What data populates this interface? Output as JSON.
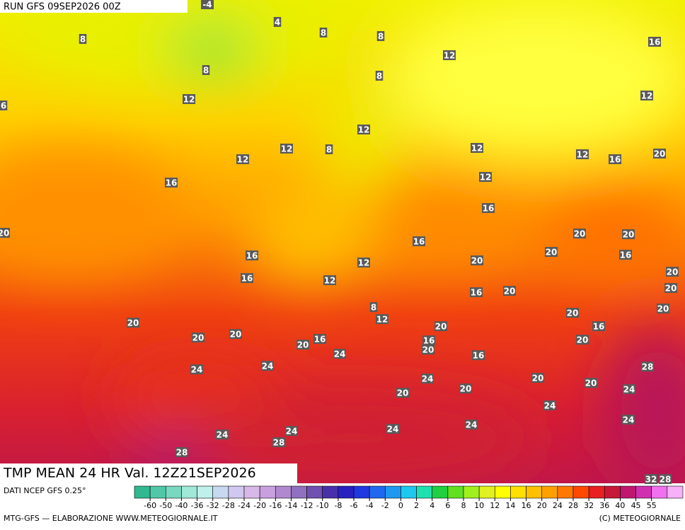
{
  "header": {
    "run": "RUN GFS 09SEP2026 00Z"
  },
  "map": {
    "title": "TMP MEAN 24 HR Val. 12Z21SEP2026",
    "contour_labels": [
      -4,
      8,
      4,
      8,
      8,
      8,
      12,
      16,
      8,
      12,
      12,
      6,
      12,
      12,
      8,
      12,
      12,
      16,
      20,
      12,
      12,
      16,
      16,
      20,
      20,
      20,
      16,
      20,
      20,
      16,
      16,
      12,
      20,
      16,
      12,
      16,
      20,
      20,
      8,
      12,
      20,
      20,
      20,
      20,
      16,
      20,
      20,
      16,
      20,
      16,
      20,
      20,
      24,
      16,
      24,
      24,
      28,
      24,
      20,
      20,
      20,
      24,
      20,
      24,
      24,
      24,
      24,
      24,
      24,
      28,
      28,
      32,
      28
    ]
  },
  "legend": {
    "source": "DATI NCEP GFS 0.25°",
    "ticks": [
      -60,
      -50,
      -40,
      -36,
      -32,
      -28,
      -24,
      -20,
      -16,
      -14,
      -12,
      -10,
      -8,
      -6,
      -4,
      -2,
      0,
      2,
      4,
      6,
      8,
      10,
      12,
      14,
      16,
      20,
      24,
      28,
      32,
      36,
      40,
      45,
      55
    ],
    "colors": [
      "#30b890",
      "#50c8a8",
      "#78d8c0",
      "#a0e8d8",
      "#c0f0ec",
      "#c8d8f0",
      "#d0c8f0",
      "#d8b8e8",
      "#c8a0e0",
      "#b088d0",
      "#9070c0",
      "#7050b0",
      "#4830a8",
      "#2820c0",
      "#2038e0",
      "#2068f0",
      "#2098f0",
      "#20c8f0",
      "#20e0b0",
      "#20d040",
      "#60e020",
      "#a0f020",
      "#e0f020",
      "#ffff00",
      "#ffe000",
      "#ffc000",
      "#ffa000",
      "#ff7800",
      "#ff4800",
      "#e82020",
      "#c81838",
      "#c01870",
      "#d030b0",
      "#f070f0",
      "#f8b0f8"
    ]
  },
  "footer": {
    "credit": "MTG-GFS — ELABORAZIONE WWW.METEOGIORNALE.IT",
    "copyright": "(C) METEOGIORNALE"
  }
}
